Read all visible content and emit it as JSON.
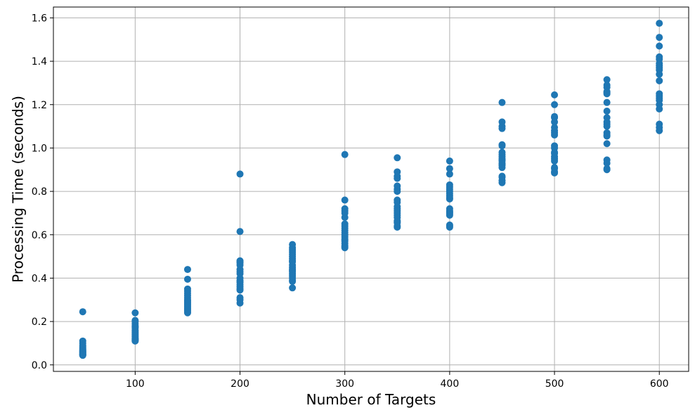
{
  "chart_data": {
    "type": "scatter",
    "title": "",
    "xlabel": "Number of Targets",
    "ylabel": "Processing Time (seconds)",
    "xlim": [
      22,
      628
    ],
    "ylim": [
      -0.03,
      1.65
    ],
    "xticks": [
      100,
      200,
      300,
      400,
      500,
      600
    ],
    "yticks": [
      0.0,
      0.2,
      0.4,
      0.6,
      0.8,
      1.0,
      1.2,
      1.4,
      1.6
    ],
    "xtick_labels": [
      "100",
      "200",
      "300",
      "400",
      "500",
      "600"
    ],
    "ytick_labels": [
      "0.0",
      "0.2",
      "0.4",
      "0.6",
      "0.8",
      "1.0",
      "1.2",
      "1.4",
      "1.6"
    ],
    "grid": true,
    "legend": "none",
    "marker_color": "#1f77b4",
    "series": [
      {
        "x": [
          50,
          50,
          50,
          50,
          50,
          50,
          50,
          50,
          50,
          50,
          50,
          50,
          50,
          50,
          50,
          50,
          50,
          50,
          50,
          50,
          100,
          100,
          100,
          100,
          100,
          100,
          100,
          100,
          100,
          100,
          100,
          100,
          100,
          100,
          100,
          100,
          100,
          100,
          100,
          100,
          150,
          150,
          150,
          150,
          150,
          150,
          150,
          150,
          150,
          150,
          150,
          150,
          150,
          150,
          150,
          150,
          150,
          150,
          150,
          150,
          200,
          200,
          200,
          200,
          200,
          200,
          200,
          200,
          200,
          200,
          200,
          200,
          200,
          200,
          200,
          200,
          200,
          200,
          200,
          200,
          250,
          250,
          250,
          250,
          250,
          250,
          250,
          250,
          250,
          250,
          250,
          250,
          250,
          250,
          250,
          250,
          250,
          250,
          250,
          250,
          300,
          300,
          300,
          300,
          300,
          300,
          300,
          300,
          300,
          300,
          300,
          300,
          300,
          300,
          300,
          300,
          300,
          300,
          300,
          300,
          350,
          350,
          350,
          350,
          350,
          350,
          350,
          350,
          350,
          350,
          350,
          350,
          350,
          350,
          350,
          350,
          350,
          350,
          350,
          350,
          400,
          400,
          400,
          400,
          400,
          400,
          400,
          400,
          400,
          400,
          400,
          400,
          400,
          400,
          400,
          400,
          400,
          400,
          400,
          400,
          450,
          450,
          450,
          450,
          450,
          450,
          450,
          450,
          450,
          450,
          450,
          450,
          450,
          450,
          450,
          450,
          450,
          450,
          450,
          450,
          500,
          500,
          500,
          500,
          500,
          500,
          500,
          500,
          500,
          500,
          500,
          500,
          500,
          500,
          500,
          500,
          500,
          500,
          500,
          500,
          550,
          550,
          550,
          550,
          550,
          550,
          550,
          550,
          550,
          550,
          550,
          550,
          550,
          550,
          550,
          550,
          550,
          550,
          550,
          550,
          600,
          600,
          600,
          600,
          600,
          600,
          600,
          600,
          600,
          600,
          600,
          600,
          600,
          600,
          600,
          600,
          600,
          600,
          600,
          600
        ],
        "y": [
          0.245,
          0.11,
          0.1,
          0.09,
          0.085,
          0.08,
          0.075,
          0.07,
          0.068,
          0.065,
          0.062,
          0.06,
          0.058,
          0.055,
          0.052,
          0.05,
          0.048,
          0.046,
          0.045,
          0.044,
          0.24,
          0.205,
          0.2,
          0.19,
          0.18,
          0.175,
          0.17,
          0.16,
          0.155,
          0.15,
          0.145,
          0.14,
          0.135,
          0.13,
          0.125,
          0.12,
          0.118,
          0.115,
          0.112,
          0.11,
          0.44,
          0.395,
          0.35,
          0.34,
          0.33,
          0.32,
          0.31,
          0.3,
          0.295,
          0.29,
          0.285,
          0.28,
          0.275,
          0.27,
          0.265,
          0.26,
          0.255,
          0.25,
          0.245,
          0.24,
          0.88,
          0.615,
          0.48,
          0.475,
          0.47,
          0.46,
          0.44,
          0.43,
          0.42,
          0.4,
          0.39,
          0.385,
          0.38,
          0.37,
          0.36,
          0.35,
          0.345,
          0.31,
          0.3,
          0.285,
          0.555,
          0.54,
          0.53,
          0.52,
          0.51,
          0.5,
          0.49,
          0.48,
          0.475,
          0.46,
          0.45,
          0.44,
          0.435,
          0.43,
          0.42,
          0.41,
          0.4,
          0.39,
          0.385,
          0.355,
          0.97,
          0.76,
          0.72,
          0.71,
          0.7,
          0.68,
          0.65,
          0.64,
          0.63,
          0.62,
          0.61,
          0.6,
          0.59,
          0.58,
          0.575,
          0.57,
          0.56,
          0.55,
          0.545,
          0.54,
          0.955,
          0.89,
          0.87,
          0.86,
          0.825,
          0.81,
          0.8,
          0.76,
          0.75,
          0.73,
          0.72,
          0.71,
          0.7,
          0.69,
          0.68,
          0.665,
          0.66,
          0.655,
          0.64,
          0.635,
          0.94,
          0.905,
          0.88,
          0.83,
          0.82,
          0.81,
          0.8,
          0.79,
          0.78,
          0.77,
          0.765,
          0.72,
          0.71,
          0.705,
          0.7,
          0.695,
          0.69,
          0.645,
          0.64,
          0.635,
          1.21,
          1.12,
          1.1,
          1.09,
          1.015,
          1.01,
          0.98,
          0.97,
          0.96,
          0.95,
          0.945,
          0.94,
          0.93,
          0.925,
          0.92,
          0.91,
          0.87,
          0.865,
          0.85,
          0.84,
          1.245,
          1.2,
          1.145,
          1.14,
          1.12,
          1.095,
          1.08,
          1.07,
          1.06,
          1.01,
          1.0,
          0.98,
          0.975,
          0.96,
          0.95,
          0.94,
          0.91,
          0.905,
          0.89,
          0.885,
          1.315,
          1.29,
          1.28,
          1.26,
          1.255,
          1.25,
          1.21,
          1.17,
          1.14,
          1.12,
          1.11,
          1.1,
          1.07,
          1.06,
          1.055,
          1.02,
          0.945,
          0.93,
          0.905,
          0.9,
          1.575,
          1.51,
          1.47,
          1.42,
          1.41,
          1.39,
          1.38,
          1.37,
          1.36,
          1.34,
          1.31,
          1.25,
          1.24,
          1.23,
          1.22,
          1.2,
          1.18,
          1.11,
          1.095,
          1.08
        ]
      }
    ]
  }
}
